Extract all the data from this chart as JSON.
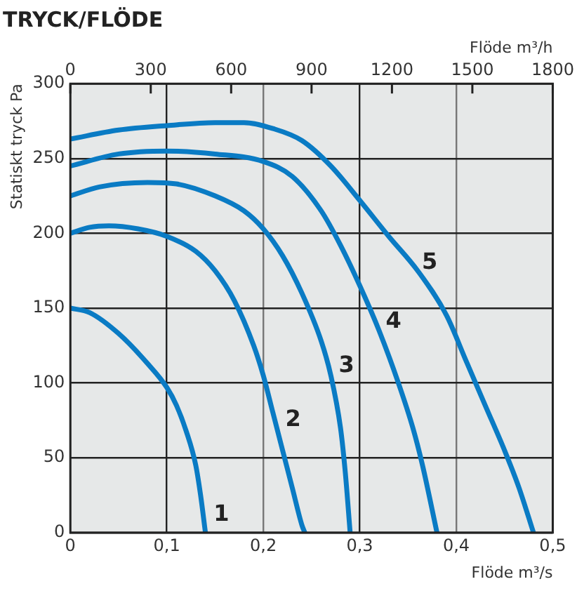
{
  "chart_data": {
    "type": "line",
    "title": "TRYCK/FLÖDE",
    "xlabel": "Flöde m³/s",
    "x2label": "Flöde m³/h",
    "ylabel": "Statiskt tryck Pa",
    "xlim": [
      0,
      0.5
    ],
    "xticks": [
      0,
      {
        "value": 0.1,
        "label": "0,1"
      },
      {
        "value": 0.2,
        "label": "0,2"
      },
      {
        "value": 0.3,
        "label": "0,3"
      },
      {
        "value": 0.4,
        "label": "0,4"
      },
      {
        "value": 0.5,
        "label": "0,5"
      }
    ],
    "x2lim": [
      0,
      1800
    ],
    "x2ticks": [
      0,
      300,
      600,
      900,
      1200,
      1500,
      1800
    ],
    "ylim": [
      0,
      300
    ],
    "yticks": [
      0,
      50,
      100,
      150,
      200,
      250,
      300
    ],
    "grid": true,
    "legend": false,
    "marker": "none",
    "line_style": "solid",
    "series": [
      {
        "name": "1",
        "color": "#0a7bc4",
        "x": [
          0,
          0.02,
          0.05,
          0.08,
          0.1,
          0.11,
          0.12,
          0.13,
          0.135,
          0.14
        ],
        "values": [
          150,
          147,
          133,
          113,
          97,
          85,
          68,
          45,
          25,
          0
        ]
      },
      {
        "name": "2",
        "color": "#0a7bc4",
        "x": [
          0,
          0.02,
          0.04,
          0.07,
          0.1,
          0.13,
          0.15,
          0.17,
          0.19,
          0.2,
          0.21,
          0.22,
          0.23,
          0.24,
          0.243
        ],
        "values": [
          200,
          204,
          205,
          203,
          198,
          188,
          175,
          155,
          125,
          105,
          80,
          55,
          30,
          5,
          0
        ]
      },
      {
        "name": "3",
        "color": "#0a7bc4",
        "x": [
          0,
          0.03,
          0.08,
          0.11,
          0.15,
          0.18,
          0.2,
          0.22,
          0.24,
          0.26,
          0.27,
          0.28,
          0.285,
          0.29
        ],
        "values": [
          225,
          231,
          234,
          233,
          225,
          215,
          203,
          185,
          160,
          128,
          105,
          70,
          40,
          0
        ]
      },
      {
        "name": "4",
        "color": "#0a7bc4",
        "x": [
          0,
          0.05,
          0.1,
          0.15,
          0.2,
          0.23,
          0.26,
          0.28,
          0.3,
          0.32,
          0.34,
          0.355,
          0.365,
          0.38
        ],
        "values": [
          245,
          253,
          255,
          253,
          248,
          238,
          215,
          192,
          165,
          135,
          100,
          70,
          45,
          0
        ]
      },
      {
        "name": "5",
        "color": "#0a7bc4",
        "x": [
          0,
          0.05,
          0.1,
          0.15,
          0.18,
          0.21,
          0.24,
          0.27,
          0.3,
          0.33,
          0.36,
          0.39,
          0.41,
          0.43,
          0.45,
          0.465,
          0.48
        ],
        "values": [
          263,
          269,
          272,
          274,
          274,
          270,
          262,
          245,
          222,
          198,
          175,
          145,
          115,
          85,
          55,
          30,
          0
        ]
      }
    ]
  }
}
